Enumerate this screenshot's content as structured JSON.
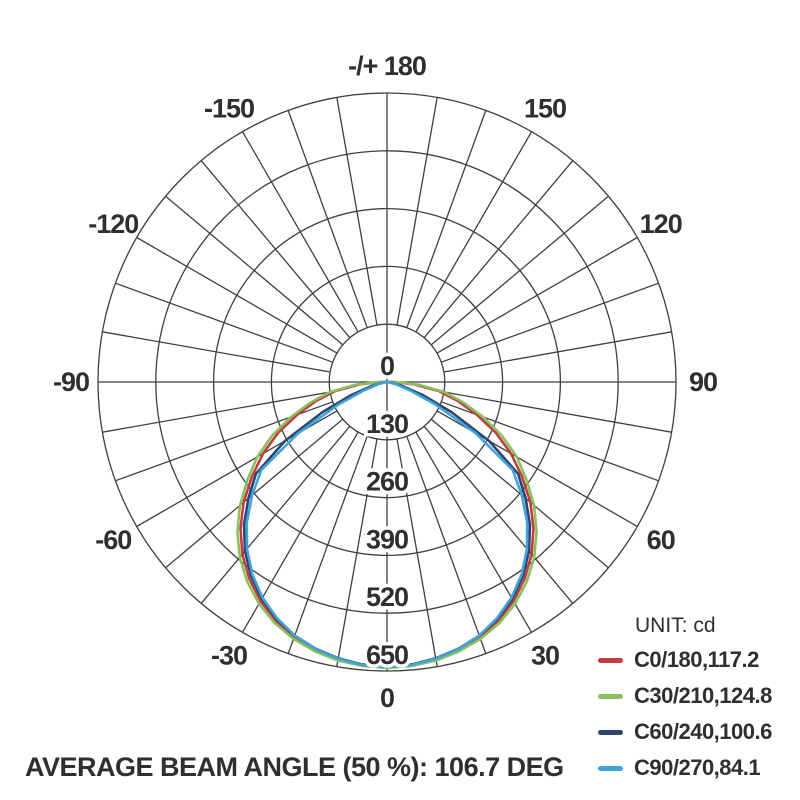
{
  "chart_data": {
    "type": "polar_intensity_distribution",
    "unit_label": "UNIT: cd",
    "caption": "AVERAGE BEAM ANGLE (50 %): 106.7 DEG",
    "legend_position": "bottom-right",
    "grid": {
      "spoke_step_deg": 10,
      "color": "#3f3f3f"
    },
    "angle_axis": {
      "zero_direction": "down",
      "labels": [
        {
          "deg": -150,
          "text": "-150"
        },
        {
          "deg": -120,
          "text": "-120"
        },
        {
          "deg": -90,
          "text": "-90"
        },
        {
          "deg": -60,
          "text": "-60"
        },
        {
          "deg": -30,
          "text": "-30"
        },
        {
          "deg": 0,
          "text": "0"
        },
        {
          "deg": 30,
          "text": "30"
        },
        {
          "deg": 60,
          "text": "60"
        },
        {
          "deg": 90,
          "text": "90"
        },
        {
          "deg": 120,
          "text": "120"
        },
        {
          "deg": 150,
          "text": "150"
        },
        {
          "deg": 180,
          "text": "-/+ 180"
        }
      ]
    },
    "radial_axis": {
      "unit": "cd",
      "max": 650,
      "rings": [
        130,
        260,
        390,
        520,
        650
      ],
      "ticks": [
        {
          "value": 0,
          "text": "0"
        },
        {
          "value": 130,
          "text": "130"
        },
        {
          "value": 260,
          "text": "260"
        },
        {
          "value": 390,
          "text": "390"
        },
        {
          "value": 520,
          "text": "520"
        },
        {
          "value": 650,
          "text": "650"
        }
      ]
    },
    "series": [
      {
        "name": "C0/180",
        "label": "C0/180,117.2",
        "beam_angle_deg": 117.2,
        "color": "#bf3e3e",
        "symmetric": true,
        "points": [
          [
            0,
            640
          ],
          [
            5,
            638
          ],
          [
            10,
            632
          ],
          [
            15,
            623
          ],
          [
            20,
            610
          ],
          [
            25,
            592
          ],
          [
            30,
            569
          ],
          [
            35,
            540
          ],
          [
            40,
            506
          ],
          [
            45,
            466
          ],
          [
            50,
            421
          ],
          [
            55,
            371
          ],
          [
            60,
            322
          ],
          [
            65,
            270
          ],
          [
            70,
            215
          ],
          [
            75,
            165
          ],
          [
            80,
            120
          ],
          [
            85,
            62
          ],
          [
            90,
            14
          ],
          [
            93,
            0
          ]
        ]
      },
      {
        "name": "C30/210",
        "label": "C30/210,124.8",
        "beam_angle_deg": 124.8,
        "color": "#8cbf5f",
        "symmetric": true,
        "points": [
          [
            0,
            643
          ],
          [
            5,
            641
          ],
          [
            10,
            636
          ],
          [
            15,
            627
          ],
          [
            20,
            615
          ],
          [
            25,
            598
          ],
          [
            30,
            576
          ],
          [
            35,
            548
          ],
          [
            40,
            515
          ],
          [
            45,
            476
          ],
          [
            50,
            432
          ],
          [
            55,
            383
          ],
          [
            60,
            337
          ],
          [
            65,
            285
          ],
          [
            70,
            230
          ],
          [
            75,
            178
          ],
          [
            80,
            132
          ],
          [
            85,
            72
          ],
          [
            90,
            20
          ],
          [
            95,
            0
          ]
        ]
      },
      {
        "name": "C60/240",
        "label": "C60/240,100.6",
        "beam_angle_deg": 100.6,
        "color": "#2e4370",
        "symmetric": true,
        "points": [
          [
            0,
            640
          ],
          [
            5,
            638
          ],
          [
            10,
            631
          ],
          [
            15,
            621
          ],
          [
            20,
            607
          ],
          [
            25,
            588
          ],
          [
            30,
            563
          ],
          [
            35,
            533
          ],
          [
            40,
            497
          ],
          [
            45,
            455
          ],
          [
            50,
            407
          ],
          [
            55,
            360
          ],
          [
            60,
            265
          ],
          [
            65,
            160
          ],
          [
            70,
            85
          ],
          [
            75,
            38
          ],
          [
            80,
            12
          ],
          [
            85,
            0
          ]
        ]
      },
      {
        "name": "C90/270",
        "label": "C90/270,84.1",
        "beam_angle_deg": 84.1,
        "color": "#41a4d9",
        "symmetric": true,
        "points": [
          [
            0,
            641
          ],
          [
            5,
            639
          ],
          [
            10,
            632
          ],
          [
            15,
            622
          ],
          [
            20,
            607
          ],
          [
            25,
            586
          ],
          [
            30,
            560
          ],
          [
            35,
            528
          ],
          [
            40,
            490
          ],
          [
            45,
            446
          ],
          [
            50,
            396
          ],
          [
            55,
            345
          ],
          [
            60,
            230
          ],
          [
            65,
            120
          ],
          [
            70,
            55
          ],
          [
            75,
            22
          ],
          [
            80,
            6
          ],
          [
            83,
            0
          ]
        ]
      }
    ]
  }
}
